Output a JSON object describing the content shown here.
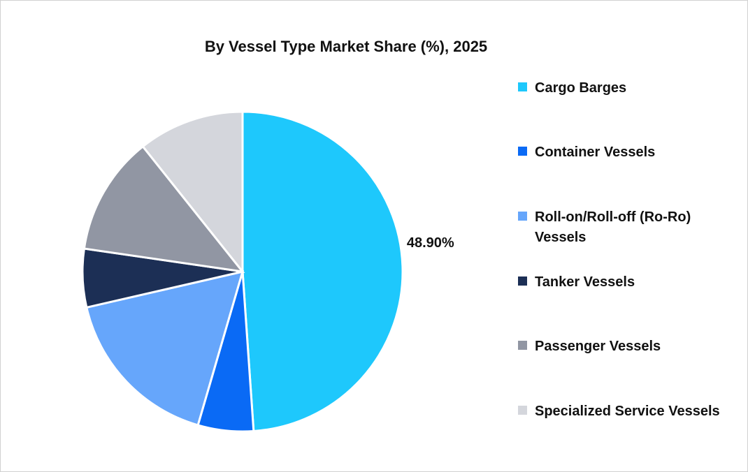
{
  "chart_data": {
    "type": "pie",
    "title": "By Vessel Type Market Share (%), 2025",
    "categories": [
      "Cargo Barges",
      "Container Vessels",
      "Roll-on/Roll-off (Ro-Ro) Vessels",
      "Tanker Vessels",
      "Passenger Vessels",
      "Specialized Service Vessels"
    ],
    "values": [
      48.9,
      5.6,
      16.9,
      5.9,
      12.0,
      10.7
    ],
    "value_labels": [
      "48.90%",
      null,
      null,
      null,
      null,
      null
    ],
    "colors": [
      "#1ec8fc",
      "#0a6af5",
      "#66a6fb",
      "#1c2f55",
      "#9196a3",
      "#d4d6dc"
    ],
    "legend": "right"
  }
}
